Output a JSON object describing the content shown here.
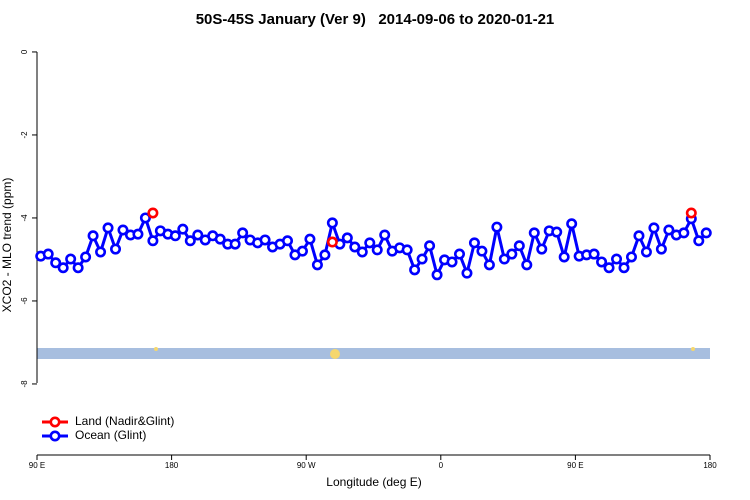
{
  "chart_data": {
    "type": "line",
    "title": "50S-45S January (Ver 9)   2014-09-06 to 2020-01-21",
    "x_label": "Longitude (deg E)",
    "y_label": "XCO2 - MLO trend (ppm)",
    "xlim": [
      90,
      540
    ],
    "xticks": [
      {
        "value": 90,
        "label": "90 E"
      },
      {
        "value": 180,
        "label": "180"
      },
      {
        "value": 270,
        "label": "90 W"
      },
      {
        "value": 360,
        "label": "0"
      },
      {
        "value": 450,
        "label": "90 E"
      },
      {
        "value": 540,
        "label": "180"
      }
    ],
    "ylim": [
      -9.7,
      0.3
    ],
    "yticks": [
      0,
      -2,
      -4,
      -6,
      -8
    ],
    "legend": "bottom-left",
    "series": [
      {
        "name": "Ocean (Glint)",
        "color": "#0000ff",
        "mode": "lines+points",
        "x": [
          92.5,
          97.5,
          102.5,
          107.5,
          112.5,
          117.5,
          122.5,
          127.5,
          132.5,
          137.5,
          142.5,
          147.5,
          152.5,
          157.5,
          162.5,
          167.5,
          172.5,
          177.5,
          182.5,
          187.5,
          192.5,
          197.5,
          202.5,
          207.5,
          212.5,
          217.5,
          222.5,
          227.5,
          232.5,
          237.5,
          242.5,
          247.5,
          252.5,
          257.5,
          262.5,
          267.5,
          272.5,
          277.5,
          282.5,
          287.5,
          292.5,
          297.5,
          302.5,
          307.5,
          312.5,
          317.5,
          322.5,
          327.5,
          332.5,
          337.5,
          342.5,
          347.5,
          352.5,
          357.5,
          362.5,
          367.5,
          372.5,
          377.5,
          382.5,
          387.5,
          392.5,
          397.5,
          402.5,
          407.5,
          412.5,
          417.5,
          422.5,
          427.5,
          432.5,
          437.5,
          442.5,
          447.5,
          452.5,
          457.5,
          462.5,
          467.5,
          472.5,
          477.5,
          482.5,
          487.5,
          492.5,
          497.5,
          502.5,
          507.5,
          512.5,
          517.5,
          522.5,
          527.5,
          532.5,
          537.5
        ],
        "values": [
          -4.92,
          -4.87,
          -5.08,
          -5.2,
          -4.99,
          -5.2,
          -4.94,
          -4.43,
          -4.82,
          -4.24,
          -4.75,
          -4.29,
          -4.41,
          -4.39,
          -4.0,
          -4.55,
          -4.31,
          -4.39,
          -4.43,
          -4.27,
          -4.55,
          -4.41,
          -4.53,
          -4.43,
          -4.51,
          -4.63,
          -4.63,
          -4.36,
          -4.53,
          -4.6,
          -4.53,
          -4.7,
          -4.63,
          -4.55,
          -4.89,
          -4.8,
          -4.51,
          -5.13,
          -4.89,
          -4.12,
          -4.63,
          -4.48,
          -4.7,
          -4.82,
          -4.6,
          -4.77,
          -4.41,
          -4.8,
          -4.72,
          -4.77,
          -5.25,
          -4.99,
          -4.67,
          -5.37,
          -5.01,
          -5.06,
          -4.87,
          -5.33,
          -4.6,
          -4.8,
          -5.13,
          -4.22,
          -4.99,
          -4.87,
          -4.67,
          -5.13,
          -4.36,
          -4.75,
          -4.31,
          -4.34,
          -4.94,
          -4.14,
          -4.92,
          -4.89,
          -4.87,
          -5.06,
          -5.2,
          -4.99,
          -5.2,
          -4.94,
          -4.43,
          -4.82,
          -4.24,
          -4.75,
          -4.29,
          -4.41,
          -4.36,
          -4.02,
          -4.55,
          -4.36
        ]
      },
      {
        "name": "Land (Nadir&Glint)",
        "color": "#ff0000",
        "mode": "points",
        "x": [
          167.5,
          287.5,
          527.5
        ],
        "values": [
          -3.88,
          -4.58,
          -3.88
        ]
      }
    ]
  }
}
